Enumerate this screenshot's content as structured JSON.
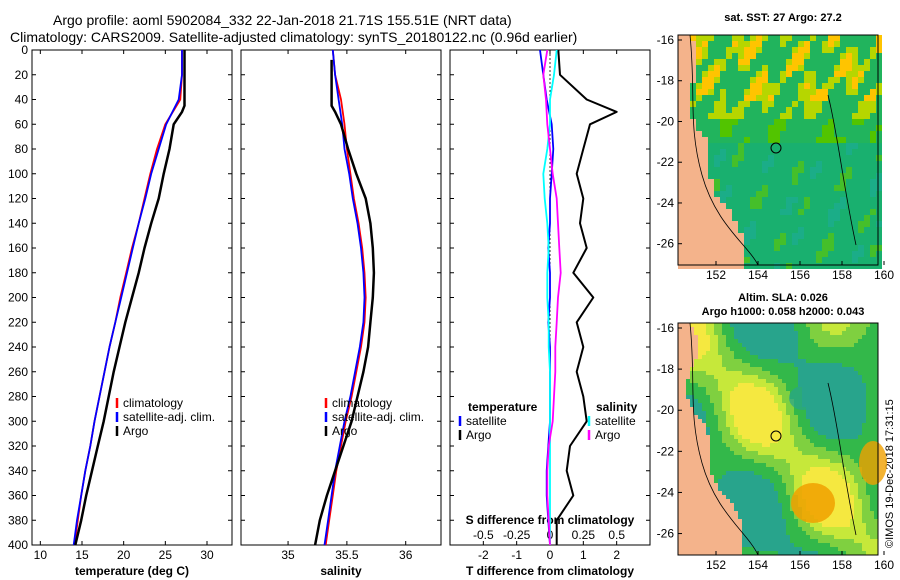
{
  "titles": {
    "line1": "Argo profile: aoml 5902084_332 22-Jan-2018 21.71S 155.51E (NRT data)",
    "line2": "Climatology: CARS2009. Satellite-adjusted climatology: synTS_20180122.nc (0.96d earlier)"
  },
  "maps": {
    "sst_title": "sat. SST: 27 Argo: 27.2",
    "sla_title": "Altim. SLA: 0.026",
    "sla_subtitle": "Argo h1000: 0.058 h2000: 0.043",
    "lat_ticks": [
      "-16",
      "-18",
      "-20",
      "-22",
      "-24",
      "-26"
    ],
    "lon_ticks": [
      "152",
      "154",
      "156",
      "158",
      "160"
    ]
  },
  "stamp": "©IMOS 19-Dec-2018 17:31:15",
  "colors": {
    "climatology": "#ff0000",
    "satellite": "#0000ff",
    "argo": "#000000",
    "sat_s": "#00ffff",
    "argo_s": "#ff00ff"
  },
  "chart_data": [
    {
      "type": "line",
      "xlabel": "temperature (deg C)",
      "ylabel": "depth",
      "xlim": [
        9,
        33
      ],
      "ylim": [
        0,
        400
      ],
      "xticks": [
        10,
        15,
        20,
        25,
        30
      ],
      "yticks": [
        0,
        20,
        40,
        60,
        80,
        100,
        120,
        140,
        160,
        180,
        200,
        220,
        240,
        260,
        280,
        300,
        320,
        340,
        360,
        380,
        400
      ],
      "legend": [
        "climatology",
        "satellite-adj. clim.",
        "Argo"
      ],
      "series": [
        {
          "name": "climatology",
          "points": [
            [
              27.0,
              0
            ],
            [
              27.0,
              20
            ],
            [
              26.8,
              40
            ],
            [
              25.0,
              60
            ],
            [
              24.0,
              80
            ],
            [
              23.2,
              100
            ],
            [
              22.5,
              120
            ],
            [
              21.8,
              140
            ],
            [
              21.0,
              160
            ],
            [
              20.3,
              180
            ],
            [
              19.6,
              200
            ],
            [
              19.0,
              220
            ],
            [
              18.3,
              240
            ],
            [
              17.7,
              260
            ],
            [
              17.1,
              280
            ],
            [
              16.5,
              300
            ],
            [
              16.0,
              320
            ],
            [
              15.4,
              340
            ],
            [
              14.9,
              360
            ],
            [
              14.5,
              380
            ],
            [
              14.1,
              400
            ]
          ]
        },
        {
          "name": "satellite-adj. clim.",
          "points": [
            [
              27.0,
              0
            ],
            [
              27.0,
              20
            ],
            [
              26.6,
              40
            ],
            [
              25.1,
              60
            ],
            [
              24.2,
              80
            ],
            [
              23.3,
              100
            ],
            [
              22.6,
              120
            ],
            [
              21.8,
              140
            ],
            [
              21.1,
              160
            ],
            [
              20.4,
              180
            ],
            [
              19.7,
              200
            ],
            [
              19.0,
              220
            ],
            [
              18.3,
              240
            ],
            [
              17.7,
              260
            ],
            [
              17.1,
              280
            ],
            [
              16.5,
              300
            ],
            [
              16.0,
              320
            ],
            [
              15.4,
              340
            ],
            [
              14.9,
              360
            ],
            [
              14.4,
              380
            ],
            [
              14.0,
              400
            ]
          ]
        },
        {
          "name": "Argo",
          "points": [
            [
              27.3,
              0
            ],
            [
              27.3,
              45
            ],
            [
              27.0,
              50
            ],
            [
              26.0,
              60
            ],
            [
              25.5,
              80
            ],
            [
              24.8,
              100
            ],
            [
              24.2,
              120
            ],
            [
              23.3,
              140
            ],
            [
              22.5,
              160
            ],
            [
              21.8,
              180
            ],
            [
              21.0,
              200
            ],
            [
              20.2,
              220
            ],
            [
              19.5,
              240
            ],
            [
              18.8,
              260
            ],
            [
              18.2,
              280
            ],
            [
              17.6,
              300
            ],
            [
              16.9,
              320
            ],
            [
              16.2,
              340
            ],
            [
              15.5,
              360
            ],
            [
              14.9,
              380
            ],
            [
              14.2,
              400
            ]
          ]
        }
      ]
    },
    {
      "type": "line",
      "xlabel": "salinity",
      "ylabel": "depth",
      "xlim": [
        34.6,
        36.3
      ],
      "ylim": [
        0,
        400
      ],
      "xticks": [
        35,
        35.5,
        36
      ],
      "yticks": [
        0,
        20,
        40,
        60,
        80,
        100,
        120,
        140,
        160,
        180,
        200,
        220,
        240,
        260,
        280,
        300,
        320,
        340,
        360,
        380,
        400
      ],
      "legend": [
        "climatology",
        "satellite-adj. clim.",
        "Argo"
      ],
      "series": [
        {
          "name": "climatology",
          "points": [
            [
              35.38,
              0
            ],
            [
              35.4,
              20
            ],
            [
              35.45,
              40
            ],
            [
              35.48,
              60
            ],
            [
              35.5,
              80
            ],
            [
              35.53,
              100
            ],
            [
              35.56,
              120
            ],
            [
              35.6,
              140
            ],
            [
              35.63,
              160
            ],
            [
              35.65,
              180
            ],
            [
              35.66,
              200
            ],
            [
              35.65,
              220
            ],
            [
              35.62,
              240
            ],
            [
              35.58,
              260
            ],
            [
              35.54,
              280
            ],
            [
              35.49,
              300
            ],
            [
              35.45,
              320
            ],
            [
              35.41,
              340
            ],
            [
              35.38,
              360
            ],
            [
              35.35,
              380
            ],
            [
              35.32,
              400
            ]
          ]
        },
        {
          "name": "satellite-adj. clim.",
          "points": [
            [
              35.38,
              0
            ],
            [
              35.4,
              20
            ],
            [
              35.43,
              40
            ],
            [
              35.46,
              60
            ],
            [
              35.48,
              80
            ],
            [
              35.52,
              100
            ],
            [
              35.55,
              120
            ],
            [
              35.59,
              140
            ],
            [
              35.62,
              160
            ],
            [
              35.64,
              180
            ],
            [
              35.65,
              200
            ],
            [
              35.64,
              220
            ],
            [
              35.61,
              240
            ],
            [
              35.57,
              260
            ],
            [
              35.53,
              280
            ],
            [
              35.48,
              300
            ],
            [
              35.44,
              320
            ],
            [
              35.4,
              340
            ],
            [
              35.37,
              360
            ],
            [
              35.34,
              380
            ],
            [
              35.31,
              400
            ]
          ]
        },
        {
          "name": "Argo",
          "points": [
            [
              35.37,
              8
            ],
            [
              35.37,
              45
            ],
            [
              35.4,
              50
            ],
            [
              35.45,
              60
            ],
            [
              35.51,
              80
            ],
            [
              35.58,
              100
            ],
            [
              35.66,
              120
            ],
            [
              35.7,
              140
            ],
            [
              35.72,
              160
            ],
            [
              35.73,
              180
            ],
            [
              35.72,
              200
            ],
            [
              35.7,
              220
            ],
            [
              35.68,
              240
            ],
            [
              35.64,
              260
            ],
            [
              35.59,
              280
            ],
            [
              35.54,
              300
            ],
            [
              35.47,
              320
            ],
            [
              35.4,
              340
            ],
            [
              35.33,
              360
            ],
            [
              35.27,
              380
            ],
            [
              35.23,
              400
            ]
          ]
        }
      ]
    },
    {
      "type": "line",
      "xlabel": "T difference from climatology",
      "x2label": "S difference from climatology",
      "ylabel": "depth",
      "xlim": [
        -3,
        3
      ],
      "x2lim": [
        -0.75,
        0.75
      ],
      "ylim": [
        0,
        400
      ],
      "xticks": [
        -2,
        -1,
        0,
        1,
        2
      ],
      "xticklabels": [
        "-2",
        "-1",
        "0",
        "1",
        "2"
      ],
      "x2ticks": [
        -0.5,
        -0.25,
        0,
        0.25,
        0.5
      ],
      "x2ticklabels": [
        "-0.5",
        "-0.25",
        "0",
        "0.25",
        "0.5"
      ],
      "yticks": [
        0,
        20,
        40,
        60,
        80,
        100,
        120,
        140,
        160,
        180,
        200,
        220,
        240,
        260,
        280,
        300,
        320,
        340,
        360,
        380,
        400
      ],
      "legend_temperature": {
        "title": "temperature",
        "entries": [
          "satellite",
          "Argo"
        ]
      },
      "legend_salinity": {
        "title": "salinity",
        "entries": [
          "satellite",
          "Argo"
        ]
      },
      "series": [
        {
          "name": "temperature satellite",
          "axis": "T",
          "points": [
            [
              -0.3,
              0
            ],
            [
              -0.2,
              20
            ],
            [
              -0.1,
              40
            ],
            [
              0.05,
              60
            ],
            [
              0.1,
              80
            ],
            [
              0.05,
              100
            ],
            [
              0.0,
              120
            ],
            [
              0.0,
              140
            ],
            [
              -0.05,
              160
            ],
            [
              0.0,
              180
            ],
            [
              0.0,
              200
            ],
            [
              -0.05,
              220
            ],
            [
              0.0,
              240
            ],
            [
              0.0,
              260
            ],
            [
              0.0,
              280
            ],
            [
              0.0,
              300
            ],
            [
              -0.05,
              320
            ],
            [
              -0.1,
              340
            ],
            [
              -0.1,
              360
            ],
            [
              -0.05,
              380
            ],
            [
              0.0,
              400
            ]
          ]
        },
        {
          "name": "temperature Argo",
          "axis": "T",
          "points": [
            [
              0.25,
              0
            ],
            [
              0.3,
              20
            ],
            [
              1.1,
              40
            ],
            [
              2.0,
              50
            ],
            [
              1.2,
              60
            ],
            [
              1.0,
              80
            ],
            [
              0.8,
              100
            ],
            [
              1.0,
              120
            ],
            [
              0.9,
              140
            ],
            [
              1.1,
              160
            ],
            [
              0.7,
              180
            ],
            [
              1.3,
              200
            ],
            [
              0.8,
              220
            ],
            [
              1.0,
              240
            ],
            [
              0.8,
              260
            ],
            [
              1.0,
              280
            ],
            [
              1.1,
              300
            ],
            [
              0.6,
              320
            ],
            [
              0.5,
              340
            ],
            [
              0.7,
              360
            ],
            [
              0.2,
              380
            ],
            [
              0.2,
              400
            ]
          ]
        },
        {
          "name": "salinity satellite",
          "axis": "S",
          "points": [
            [
              0.05,
              0
            ],
            [
              0.03,
              20
            ],
            [
              0.0,
              40
            ],
            [
              0.0,
              60
            ],
            [
              -0.02,
              80
            ],
            [
              -0.05,
              100
            ],
            [
              -0.04,
              120
            ],
            [
              -0.02,
              140
            ],
            [
              -0.01,
              160
            ],
            [
              -0.02,
              180
            ],
            [
              -0.02,
              200
            ],
            [
              -0.01,
              220
            ],
            [
              -0.01,
              240
            ],
            [
              0.0,
              260
            ],
            [
              0.0,
              280
            ],
            [
              0.0,
              300
            ],
            [
              0.0,
              320
            ],
            [
              0.0,
              340
            ],
            [
              0.0,
              360
            ],
            [
              0.0,
              380
            ],
            [
              0.0,
              400
            ]
          ]
        },
        {
          "name": "salinity Argo",
          "axis": "S",
          "points": [
            [
              -0.02,
              0
            ],
            [
              -0.05,
              20
            ],
            [
              -0.03,
              40
            ],
            [
              -0.02,
              60
            ],
            [
              0.0,
              80
            ],
            [
              0.02,
              100
            ],
            [
              0.05,
              120
            ],
            [
              0.06,
              140
            ],
            [
              0.07,
              160
            ],
            [
              0.08,
              180
            ],
            [
              0.06,
              200
            ],
            [
              0.05,
              220
            ],
            [
              0.04,
              240
            ],
            [
              0.04,
              260
            ],
            [
              0.03,
              280
            ],
            [
              0.02,
              300
            ],
            [
              -0.01,
              320
            ],
            [
              -0.02,
              340
            ],
            [
              -0.02,
              360
            ],
            [
              -0.01,
              380
            ],
            [
              0.0,
              400
            ]
          ]
        }
      ]
    }
  ]
}
